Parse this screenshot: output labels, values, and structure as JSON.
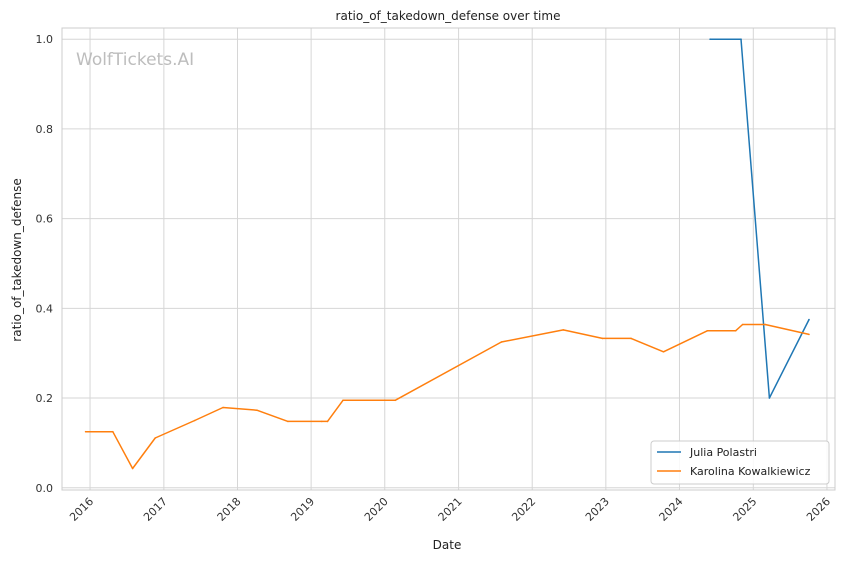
{
  "chart_data": {
    "type": "line",
    "title": "ratio_of_takedown_defense over time",
    "xlabel": "Date",
    "ylabel": "ratio_of_takedown_defense",
    "watermark": "WolfTickets.AI",
    "xlim": [
      "2015-08-15",
      "2026-02-10"
    ],
    "ylim": [
      -0.005,
      1.025
    ],
    "x_ticks": [
      "2016",
      "2017",
      "2018",
      "2019",
      "2020",
      "2021",
      "2022",
      "2023",
      "2024",
      "2025",
      "2026"
    ],
    "y_ticks": [
      "0.0",
      "0.2",
      "0.4",
      "0.6",
      "0.8",
      "1.0"
    ],
    "grid": true,
    "legend_position": "lower-right",
    "series": [
      {
        "name": "Julia Polastri",
        "color": "#1f77b4",
        "points": [
          {
            "x": "2024-06-01",
            "y": 1.0
          },
          {
            "x": "2024-11-01",
            "y": 1.0
          },
          {
            "x": "2025-03-22",
            "y": 0.2
          },
          {
            "x": "2025-10-04",
            "y": 0.375
          }
        ]
      },
      {
        "name": "Karolina Kowalkiewicz",
        "color": "#ff7f0e",
        "points": [
          {
            "x": "2015-12-10",
            "y": 0.125
          },
          {
            "x": "2016-04-23",
            "y": 0.125
          },
          {
            "x": "2016-07-30",
            "y": 0.043
          },
          {
            "x": "2016-11-19",
            "y": 0.111
          },
          {
            "x": "2017-06-03",
            "y": 0.15
          },
          {
            "x": "2017-10-21",
            "y": 0.179
          },
          {
            "x": "2018-04-07",
            "y": 0.173
          },
          {
            "x": "2018-09-08",
            "y": 0.148
          },
          {
            "x": "2019-02-23",
            "y": 0.148
          },
          {
            "x": "2019-03-23",
            "y": 0.148
          },
          {
            "x": "2019-06-08",
            "y": 0.195
          },
          {
            "x": "2020-02-22",
            "y": 0.195
          },
          {
            "x": "2021-08-01",
            "y": 0.325
          },
          {
            "x": "2022-06-04",
            "y": 0.352
          },
          {
            "x": "2022-12-15",
            "y": 0.333
          },
          {
            "x": "2023-05-06",
            "y": 0.333
          },
          {
            "x": "2023-10-14",
            "y": 0.303
          },
          {
            "x": "2024-05-18",
            "y": 0.35
          },
          {
            "x": "2024-10-05",
            "y": 0.35
          },
          {
            "x": "2024-11-09",
            "y": 0.364
          },
          {
            "x": "2025-03-01",
            "y": 0.364
          },
          {
            "x": "2025-10-04",
            "y": 0.342
          }
        ]
      }
    ]
  }
}
